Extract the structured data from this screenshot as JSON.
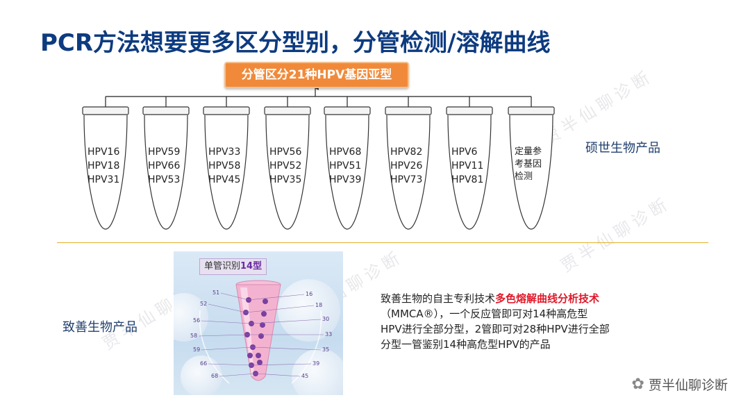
{
  "title": "PCR方法想要更多区分型别，分管检测/溶解曲线",
  "top_box": "分管区分21种HPV基因亚型",
  "tubes": [
    {
      "lines": [
        "HPV16",
        "HPV18",
        "HPV31"
      ]
    },
    {
      "lines": [
        "HPV59",
        "HPV66",
        "HPV53"
      ]
    },
    {
      "lines": [
        "HPV33",
        "HPV58",
        "HPV45"
      ]
    },
    {
      "lines": [
        "HPV56",
        "HPV52",
        "HPV35"
      ]
    },
    {
      "lines": [
        "HPV68",
        "HPV51",
        "HPV39"
      ]
    },
    {
      "lines": [
        "HPV82",
        "HPV26",
        "HPV73"
      ]
    },
    {
      "lines": [
        "HPV6",
        "HPV11",
        "HPV81"
      ]
    },
    {
      "lines": [
        "定量参",
        "考基因",
        "检测"
      ]
    }
  ],
  "right_label": "硕世生物产品",
  "left_label": "致善生物产品",
  "panel": {
    "tag_prefix": "单管识别",
    "tag_bold": "14型",
    "left_numbers": [
      "51",
      "52",
      "56",
      "58",
      "59",
      "66",
      "68"
    ],
    "right_numbers": [
      "16",
      "18",
      "30",
      "33",
      "35",
      "39",
      "45"
    ]
  },
  "description": {
    "line1_prefix": "致善生物的自主专利技术",
    "line1_highlight": "多色熔解曲线分析技术",
    "line2": "（MMCA®），一个反应管即可对14种高危型",
    "line3": "HPV进行全部分型，2管即可对28种HPV进行全部",
    "line4": "分型一管鉴别14种高危型HPV的产品"
  },
  "watermark": "贾半仙聊诊断",
  "colors": {
    "title": "#0d3b80",
    "orange": "#f08a3a",
    "highlight": "#e0192a",
    "divider": "#e3b02a"
  }
}
